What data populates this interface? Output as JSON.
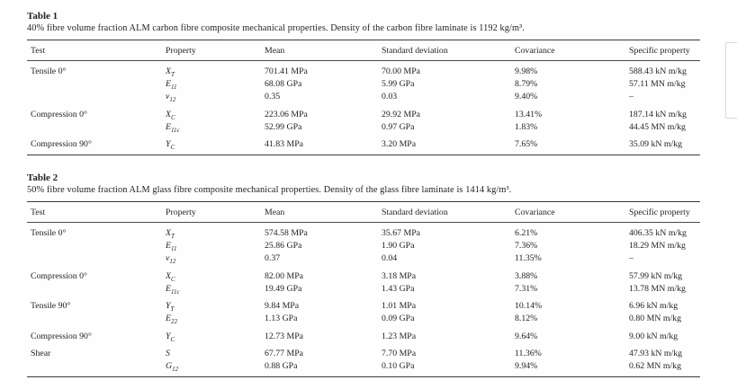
{
  "page": {
    "background": "#fefefe",
    "text_color": "#232323",
    "rule_color": "#3a3a3a"
  },
  "tables": [
    {
      "label": "Table 1",
      "description": "40% fibre volume fraction ALM carbon fibre composite mechanical properties. Density of the carbon fibre laminate is 1192 kg/m³.",
      "columns": [
        "Test",
        "Property",
        "Mean",
        "Standard deviation",
        "Covariance",
        "Specific property"
      ],
      "groups": [
        {
          "test": "Tensile 0°",
          "rows": [
            {
              "property": {
                "base": "X",
                "sub": "T"
              },
              "mean": "701.41 MPa",
              "std": "70.00 MPa",
              "cov": "9.98%",
              "specific": "588.43 kN m/kg"
            },
            {
              "property": {
                "base": "E",
                "sub": "11"
              },
              "mean": "68.08 GPa",
              "std": "5.99 GPa",
              "cov": "8.79%",
              "specific": "57.11 MN m/kg"
            },
            {
              "property": {
                "base": "ν",
                "sub": "12"
              },
              "mean": "0.35",
              "std": "0.03",
              "cov": "9.40%",
              "specific": "–"
            }
          ]
        },
        {
          "test": "Compression 0°",
          "rows": [
            {
              "property": {
                "base": "X",
                "sub": "C"
              },
              "mean": "223.06 MPa",
              "std": "29.92 MPa",
              "cov": "13.41%",
              "specific": "187.14 kN m/kg"
            },
            {
              "property": {
                "base": "E",
                "sub": "11c"
              },
              "mean": "52.99 GPa",
              "std": "0.97 GPa",
              "cov": "1.83%",
              "specific": "44.45 MN m/kg"
            }
          ]
        },
        {
          "test": "Compression 90°",
          "rows": [
            {
              "property": {
                "base": "Y",
                "sub": "C"
              },
              "mean": "41.83 MPa",
              "std": "3.20 MPa",
              "cov": "7.65%",
              "specific": "35.09 kN m/kg"
            }
          ]
        }
      ]
    },
    {
      "label": "Table 2",
      "description": "50% fibre volume fraction ALM glass fibre composite mechanical properties. Density of the glass fibre laminate is 1414 kg/m³.",
      "columns": [
        "Test",
        "Property",
        "Mean",
        "Standard deviation",
        "Covariance",
        "Specific property"
      ],
      "groups": [
        {
          "test": "Tensile 0°",
          "rows": [
            {
              "property": {
                "base": "X",
                "sub": "T"
              },
              "mean": "574.58 MPa",
              "std": "35.67 MPa",
              "cov": "6.21%",
              "specific": "406.35 kN m/kg"
            },
            {
              "property": {
                "base": "E",
                "sub": "11"
              },
              "mean": "25.86 GPa",
              "std": "1.90 GPa",
              "cov": "7.36%",
              "specific": "18.29 MN m/kg"
            },
            {
              "property": {
                "base": "ν",
                "sub": "12"
              },
              "mean": "0.37",
              "std": "0.04",
              "cov": "11.35%",
              "specific": "–"
            }
          ]
        },
        {
          "test": "Compression 0°",
          "rows": [
            {
              "property": {
                "base": "X",
                "sub": "C"
              },
              "mean": "82.00 MPa",
              "std": "3.18 MPa",
              "cov": "3.88%",
              "specific": "57.99 kN m/kg"
            },
            {
              "property": {
                "base": "E",
                "sub": "11c"
              },
              "mean": "19.49 GPa",
              "std": "1.43 GPa",
              "cov": "7.31%",
              "specific": "13.78 MN m/kg"
            }
          ]
        },
        {
          "test": "Tensile 90°",
          "rows": [
            {
              "property": {
                "base": "Y",
                "sub": "T"
              },
              "mean": "9.84 MPa",
              "std": "1.01 MPa",
              "cov": "10.14%",
              "specific": "6.96 kN m/kg"
            },
            {
              "property": {
                "base": "E",
                "sub": "22"
              },
              "mean": "1.13 GPa",
              "std": "0.09 GPa",
              "cov": "8.12%",
              "specific": "0.80 MN m/kg"
            }
          ]
        },
        {
          "test": "Compression 90°",
          "rows": [
            {
              "property": {
                "base": "Y",
                "sub": "C"
              },
              "mean": "12.73 MPa",
              "std": "1.23 MPa",
              "cov": "9.64%",
              "specific": "9.00 kN m/kg"
            }
          ]
        },
        {
          "test": "Shear",
          "rows": [
            {
              "property": {
                "base": "S",
                "sub": ""
              },
              "mean": "67.77 MPa",
              "std": "7.70 MPa",
              "cov": "11.36%",
              "specific": "47.93 kN m/kg"
            },
            {
              "property": {
                "base": "G",
                "sub": "12"
              },
              "mean": "0.88 GPa",
              "std": "0.10 GPa",
              "cov": "9.94%",
              "specific": "0.62 MN m/kg"
            }
          ]
        }
      ]
    }
  ]
}
